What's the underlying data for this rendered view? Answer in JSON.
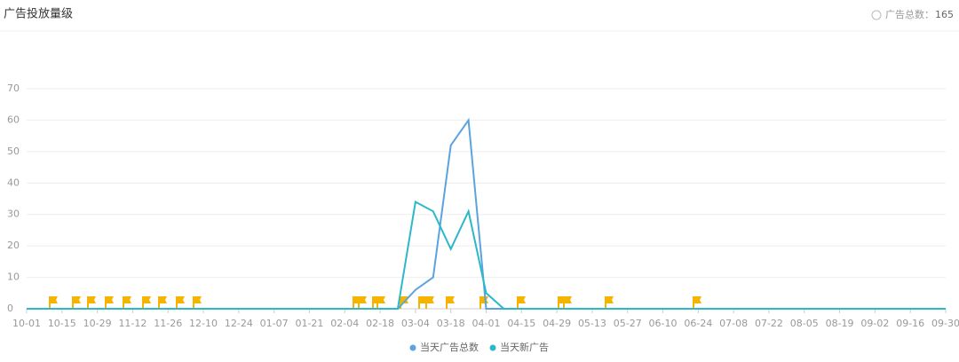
{
  "header": {
    "title": "广告投放量级",
    "total_label": "广告总数：",
    "total": 165
  },
  "chart_data": {
    "type": "line",
    "categories": [
      "10-01",
      null,
      "10-15",
      null,
      "10-29",
      null,
      "11-12",
      null,
      "11-26",
      null,
      "12-10",
      null,
      "12-24",
      null,
      "01-07",
      null,
      "01-21",
      null,
      "02-04",
      null,
      "02-18",
      null,
      "03-04",
      null,
      "03-18",
      null,
      "04-01",
      null,
      "04-15",
      null,
      "04-29",
      null,
      "05-13",
      null,
      "05-27",
      null,
      "06-10",
      null,
      "06-24",
      null,
      "07-08",
      null,
      "07-22",
      null,
      "08-05",
      null,
      "08-19",
      null,
      "09-02",
      null,
      "09-16",
      null,
      "09-30"
    ],
    "series": [
      {
        "name": "当天广告总数",
        "color": "#5ba3e0",
        "values": [
          0,
          0,
          0,
          0,
          0,
          0,
          0,
          0,
          0,
          0,
          0,
          0,
          0,
          0,
          0,
          0,
          0,
          0,
          0,
          0,
          0,
          0,
          6,
          10,
          52,
          60,
          0,
          0,
          0,
          0,
          0,
          0,
          0,
          0,
          0,
          0,
          0,
          0,
          0,
          0,
          0,
          0,
          0,
          0,
          0,
          0,
          0,
          0,
          0,
          0,
          0,
          0,
          0
        ]
      },
      {
        "name": "当天新广告",
        "color": "#2bb8c9",
        "values": [
          0,
          0,
          0,
          0,
          0,
          0,
          0,
          0,
          0,
          0,
          0,
          0,
          0,
          0,
          0,
          0,
          0,
          0,
          0,
          0,
          0,
          0,
          34,
          31,
          19,
          31,
          5,
          0,
          0,
          0,
          0,
          0,
          0,
          0,
          0,
          0,
          0,
          0,
          0,
          0,
          0,
          0,
          0,
          0,
          0,
          0,
          0,
          0,
          0,
          0,
          0,
          0,
          0
        ]
      }
    ],
    "ylim": [
      0,
      70
    ],
    "yticks": [
      0,
      10,
      20,
      30,
      40,
      50,
      60,
      70
    ],
    "grid": true
  }
}
